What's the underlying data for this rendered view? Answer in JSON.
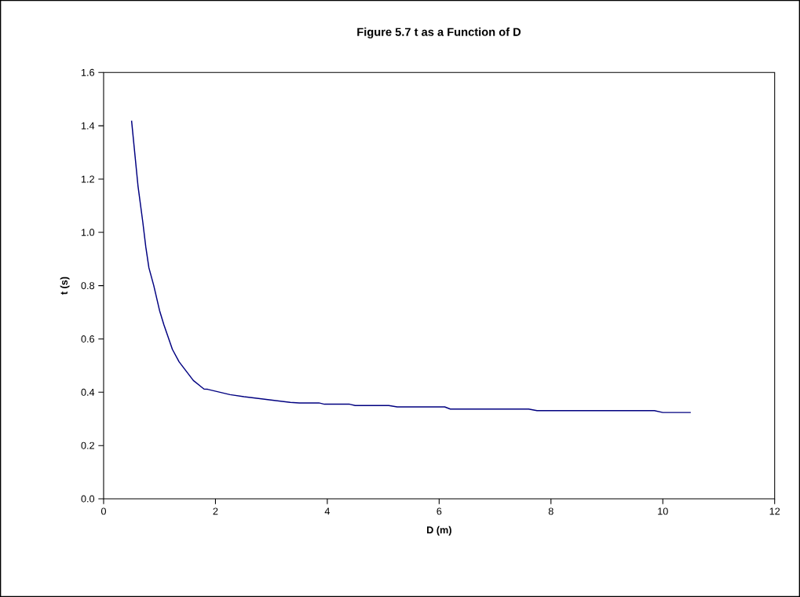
{
  "chart_data": {
    "type": "line",
    "title": "Figure 5.7 t as a Function of D",
    "xlabel": "D (m)",
    "ylabel": "t (s)",
    "xlim": [
      0,
      12
    ],
    "ylim": [
      0,
      1.6
    ],
    "xticks": [
      0,
      2,
      4,
      6,
      8,
      10,
      12
    ],
    "yticks": [
      {
        "value": 0,
        "label": "0.0"
      },
      {
        "value": 0.2,
        "label": "0.2"
      },
      {
        "value": 0.4,
        "label": "0.4"
      },
      {
        "value": 0.6,
        "label": "0.6"
      },
      {
        "value": 0.8,
        "label": "0.8"
      },
      {
        "value": 1.0,
        "label": "1.0"
      },
      {
        "value": 1.2,
        "label": "1.2"
      },
      {
        "value": 1.4,
        "label": "1.4"
      },
      {
        "value": 1.6,
        "label": "1.6"
      }
    ],
    "grid": false,
    "marker": "none",
    "line_style": "solid",
    "series": [
      {
        "color": "#000080",
        "x": [
          0.5,
          0.615,
          0.7,
          0.754,
          0.81,
          0.897,
          1.0,
          1.077,
          1.23,
          1.35,
          1.605,
          1.795,
          1.86,
          2.26,
          2.51,
          3.34,
          3.5,
          3.85,
          3.95,
          4.4,
          4.5,
          5.1,
          5.25,
          6.1,
          6.2,
          7.6,
          7.75,
          9.85,
          10.0,
          10.5
        ],
        "values": [
          1.419,
          1.174,
          1.04,
          0.946,
          0.867,
          0.8,
          0.707,
          0.654,
          0.561,
          0.514,
          0.444,
          0.412,
          0.411,
          0.391,
          0.383,
          0.362,
          0.36,
          0.36,
          0.355,
          0.355,
          0.35,
          0.35,
          0.345,
          0.345,
          0.337,
          0.337,
          0.331,
          0.331,
          0.324,
          0.324
        ]
      }
    ]
  }
}
